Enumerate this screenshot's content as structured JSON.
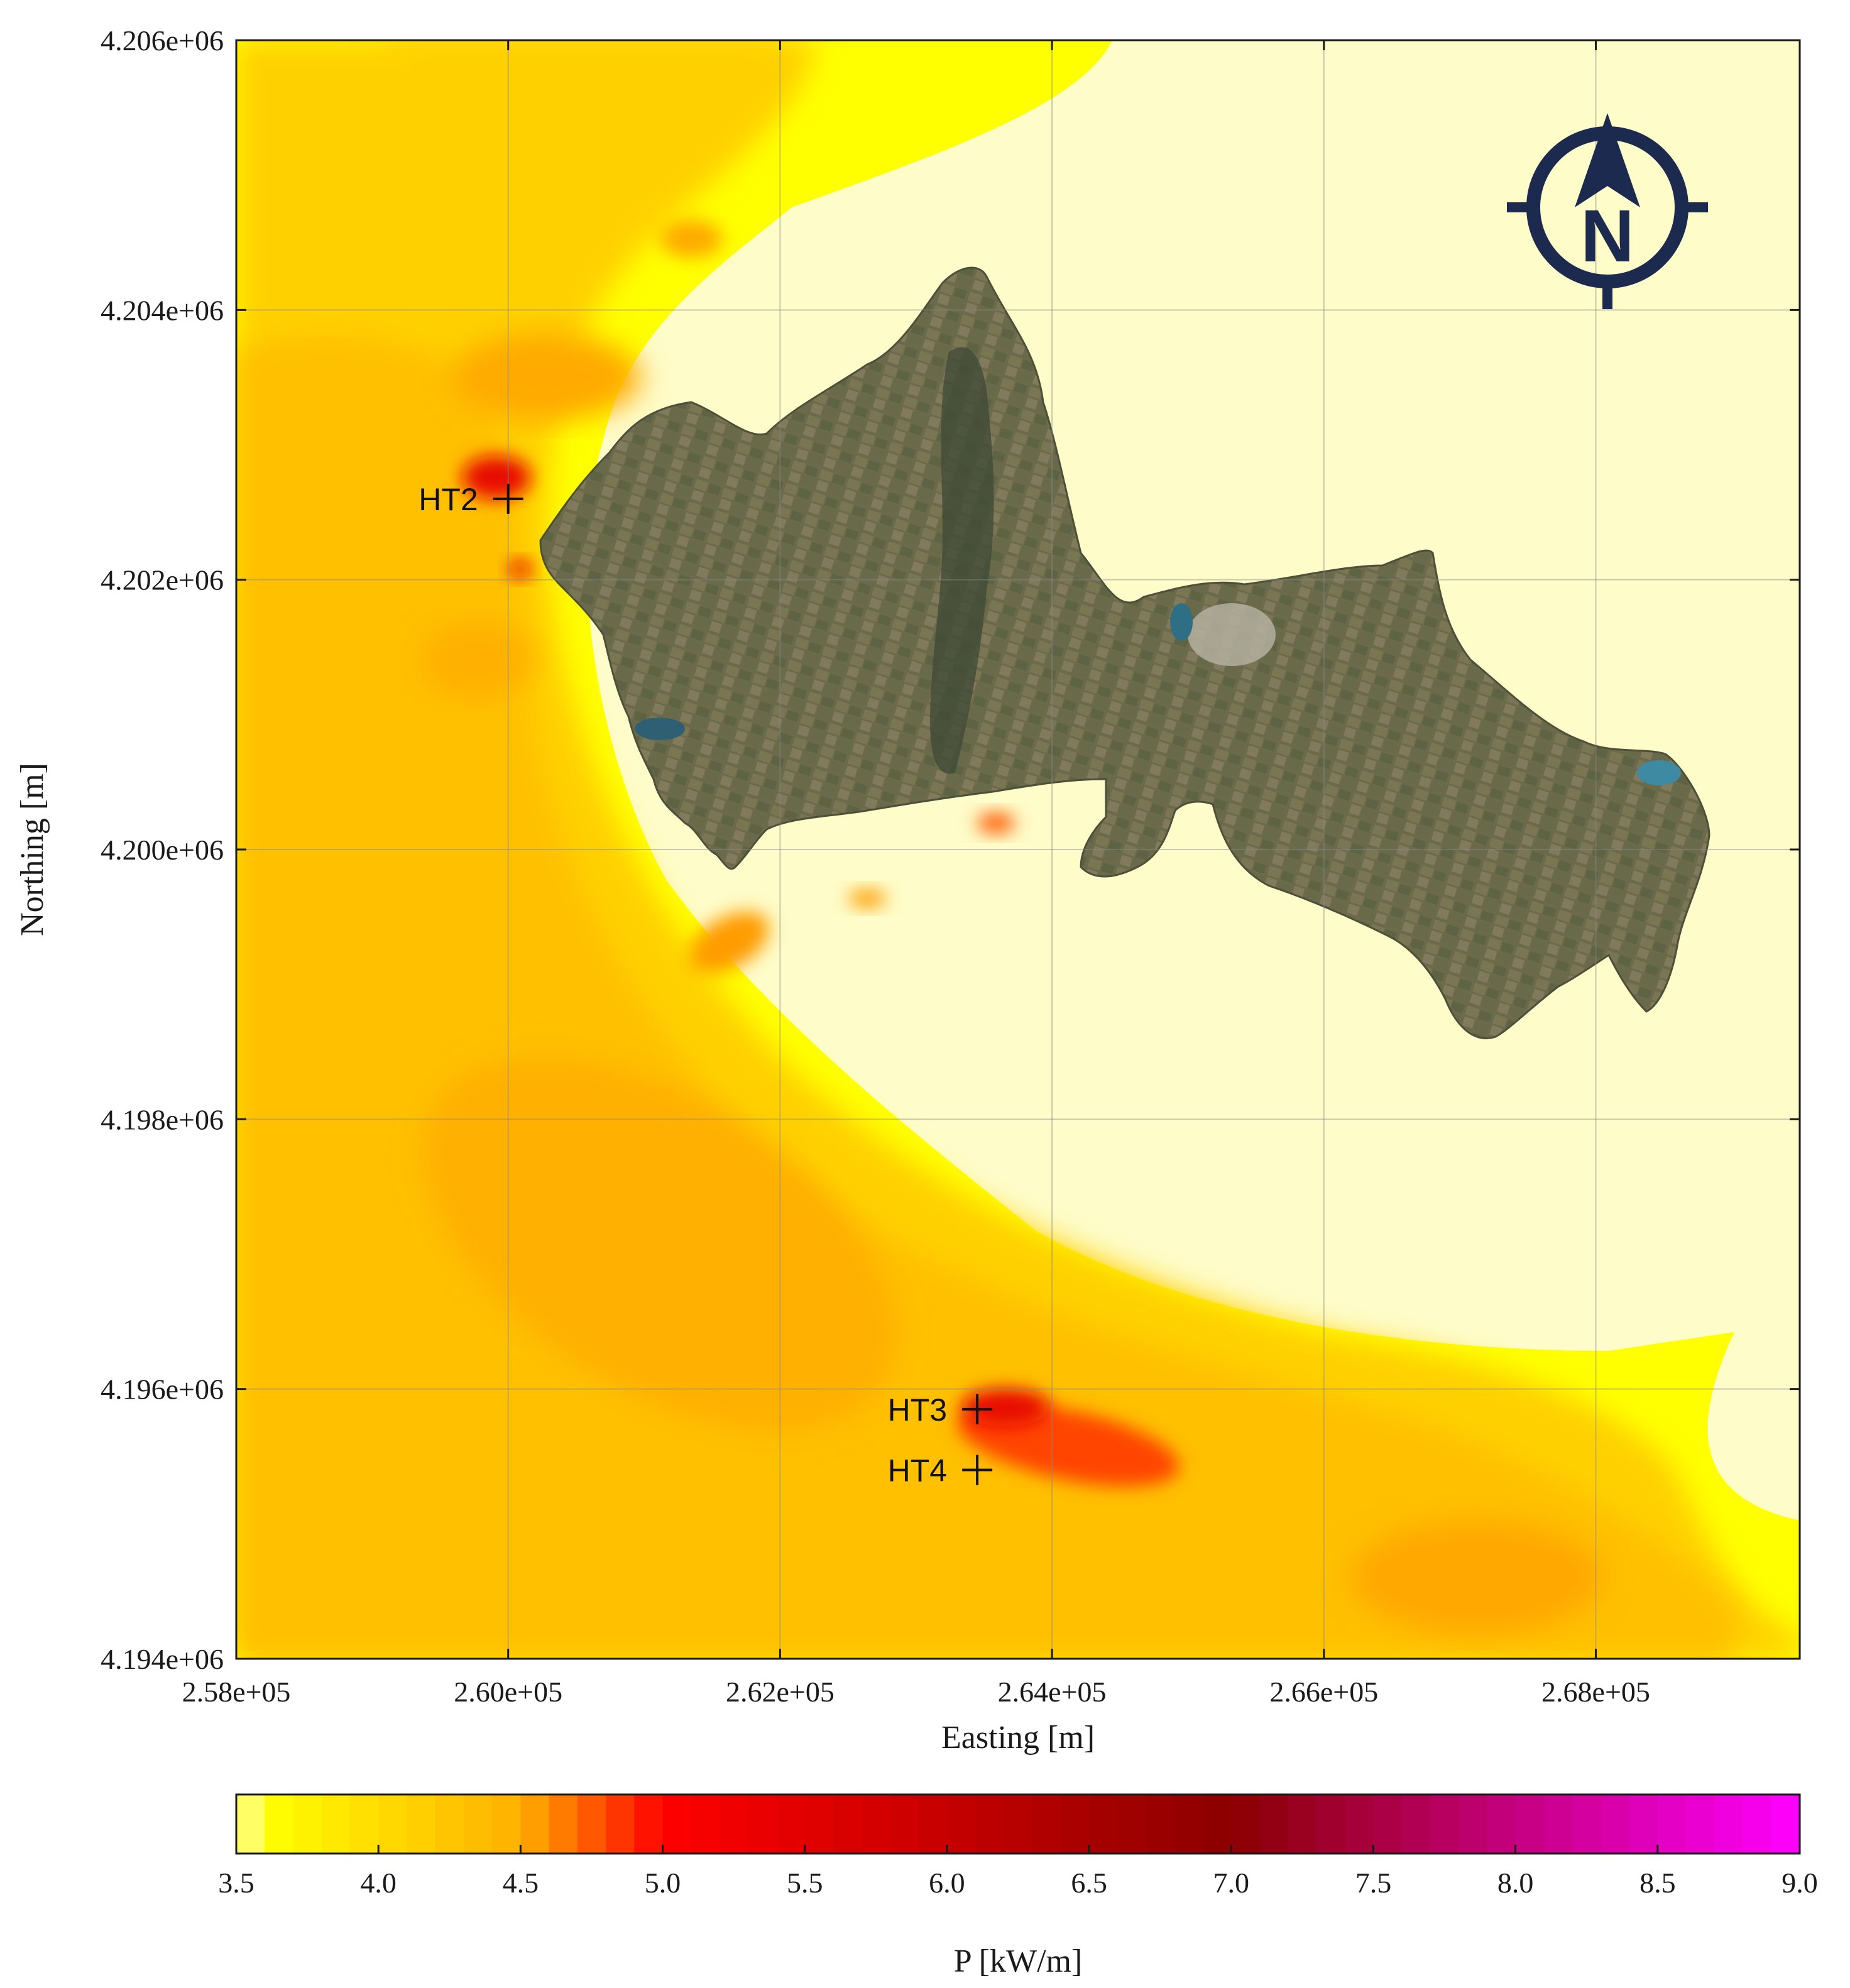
{
  "chart_data": {
    "type": "heatmap",
    "title": "",
    "xlabel": "Easting [m]",
    "ylabel": "Northing [m]",
    "xlim": [
      258000,
      269500
    ],
    "ylim": [
      4194000,
      4206000
    ],
    "x_ticks": [
      258000,
      260000,
      262000,
      264000,
      266000,
      268000
    ],
    "x_tick_labels": [
      "2.58e+05",
      "2.60e+05",
      "2.62e+05",
      "2.64e+05",
      "2.66e+05",
      "2.68e+05"
    ],
    "y_ticks": [
      4194000,
      4196000,
      4198000,
      4200000,
      4202000,
      4204000,
      4206000
    ],
    "y_tick_labels": [
      "4.194e+06",
      "4.196e+06",
      "4.198e+06",
      "4.200e+06",
      "4.202e+06",
      "4.204e+06",
      "4.206e+06"
    ],
    "grid": true,
    "colorbar": {
      "label": "P [kW/m]",
      "range": [
        3.5,
        9.0
      ],
      "ticks": [
        3.5,
        4.0,
        4.5,
        5.0,
        5.5,
        6.0,
        6.5,
        7.0,
        7.5,
        8.0,
        8.5,
        9.0
      ],
      "tick_labels": [
        "3.5",
        "4.0",
        "4.5",
        "5.0",
        "5.5",
        "6.0",
        "6.5",
        "7.0",
        "7.5",
        "8.0",
        "8.5",
        "9.0"
      ],
      "levels": 55,
      "colors": [
        "#fefcc8",
        "#ffff00",
        "#ffb000",
        "#ff0000",
        "#8b0000",
        "#ff00ff"
      ],
      "color_stops": [
        3.5,
        3.6,
        4.5,
        5.0,
        7.0,
        9.0
      ]
    },
    "sites": [
      {
        "name": "HT2",
        "x": 260000,
        "y": 4202600
      },
      {
        "name": "HT3",
        "x": 263450,
        "y": 4195850
      },
      {
        "name": "HT4",
        "x": 263450,
        "y": 4195400
      }
    ],
    "land_color": "#6a6a4c",
    "background_sea_color": "#fefcc8"
  },
  "north_arrow": {
    "letter": "N",
    "icon": "north-compass-icon",
    "color": "#1c2a4f"
  }
}
